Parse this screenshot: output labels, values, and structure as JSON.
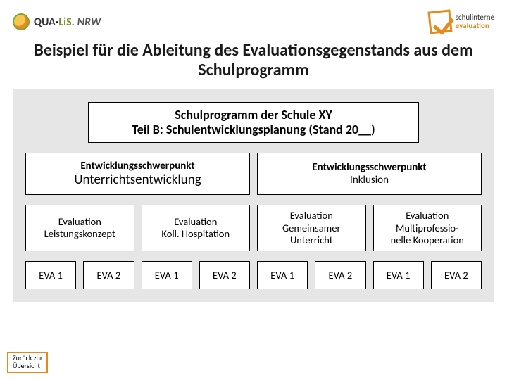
{
  "logo_left": {
    "qua": "QUA",
    "dash": "-",
    "lis": "LiS.",
    "nrw": "NRW"
  },
  "logo_right": {
    "line1": "schulinterne",
    "line2": "evaluation"
  },
  "title": "Beispiel für die Ableitung des Evaluationsgegenstands aus dem Schulprogramm",
  "diagram": {
    "panel_bg": "#e6e6e6",
    "box_bg": "#ffffff",
    "box_border": "#000000",
    "row1": {
      "line1": "Schulprogramm  der Schule XY",
      "line2": "Teil B: Schulentwicklungsplanung (Stand 20__)"
    },
    "row2": [
      {
        "top": "Entwicklungsschwerpunkt",
        "bottom": "Unterrichtsentwicklung"
      },
      {
        "top": "Entwicklungsschwerpunkt",
        "bottom": "Inklusion"
      }
    ],
    "row3": [
      {
        "top": "Evaluation",
        "bottom": "Leistungskonzept"
      },
      {
        "top": "Evaluation",
        "bottom": "Koll. Hospitation"
      },
      {
        "top": "Evaluation",
        "bottom_l1": "Gemeinsamer",
        "bottom_l2": "Unterricht"
      },
      {
        "top": "Evaluation",
        "bottom_l1": "Multiprofessio-",
        "bottom_l2": "nelle Kooperation"
      }
    ],
    "row4": [
      "EVA 1",
      "EVA 2",
      "EVA 1",
      "EVA 2",
      "EVA 1",
      "EVA 2",
      "EVA 1",
      "EVA 2"
    ]
  },
  "back_link": {
    "line1": "Zurück zur",
    "line2": "Übersicht"
  },
  "accent_orange": "#e38b1d"
}
